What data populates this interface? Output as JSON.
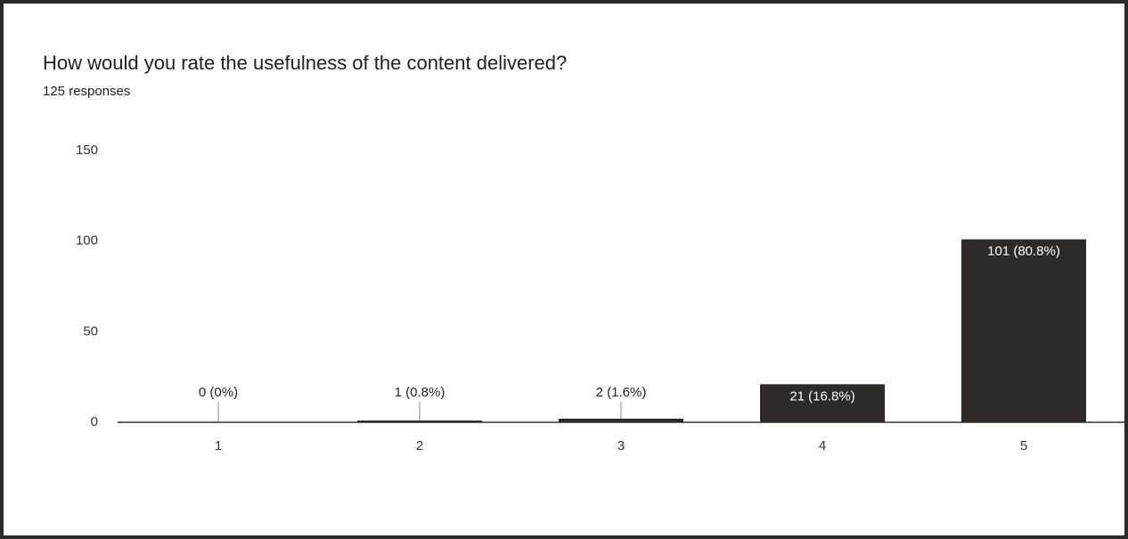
{
  "chart_data": {
    "type": "bar",
    "title": "How would you rate the usefulness of the content delivered?",
    "subtitle": "125 responses",
    "categories": [
      "1",
      "2",
      "3",
      "4",
      "5"
    ],
    "values": [
      0,
      1,
      2,
      21,
      101
    ],
    "value_labels": [
      "0 (0%)",
      "1 (0.8%)",
      "2 (1.6%)",
      "21 (16.8%)",
      "101 (80.8%)"
    ],
    "color": "#2f2a28",
    "ylim": [
      0,
      150
    ],
    "yticks": [
      0,
      50,
      100,
      150
    ],
    "grid": false
  }
}
